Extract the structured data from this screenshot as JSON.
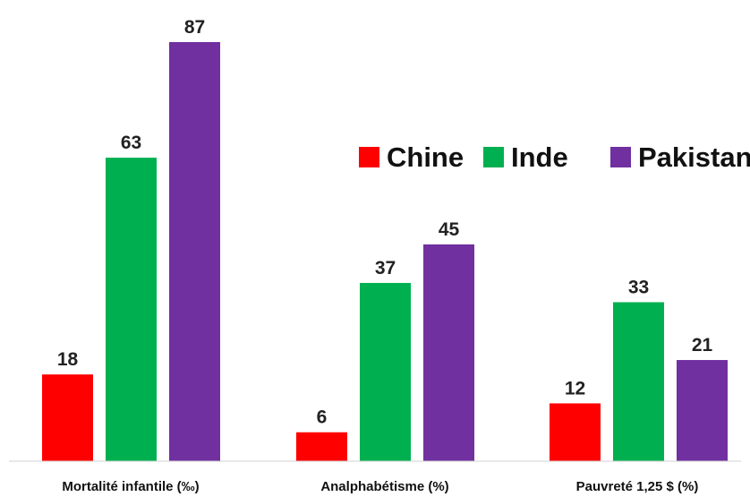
{
  "chart_data": {
    "type": "bar",
    "categories": [
      "Mortalité infantile (‰)",
      "Analphabétisme (%)",
      "Pauvreté 1,25 $ (%)"
    ],
    "series": [
      {
        "name": "Chine",
        "color": "#ff0000",
        "values": [
          18,
          6,
          12
        ]
      },
      {
        "name": "Inde",
        "color": "#00b050",
        "values": [
          63,
          37,
          33
        ]
      },
      {
        "name": "Pakistan",
        "color": "#7030a0",
        "values": [
          87,
          45,
          21
        ]
      }
    ],
    "ylim": [
      0,
      87
    ],
    "grid": false,
    "legend_position": "right",
    "show_data_labels": true
  }
}
